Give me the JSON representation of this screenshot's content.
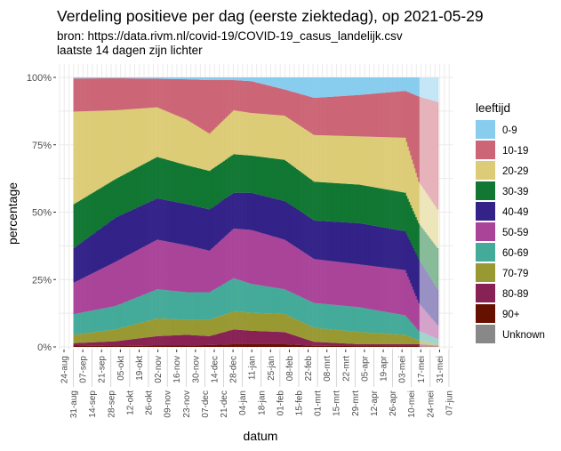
{
  "chart_data": {
    "type": "bar",
    "stacked": "percent",
    "title": "Verdeling positieve per dag (eerste ziektedag), op 2021-05-29",
    "subtitle_lines": [
      "bron: https://data.rivm.nl/covid-19/COVID-19_casus_landelijk.csv",
      "laatste 14 dagen zijn lichter"
    ],
    "xlabel": "datum",
    "ylabel": "percentage",
    "ylim": [
      0,
      100
    ],
    "y_ticks": [
      "0%",
      "25%",
      "50%",
      "75%",
      "100%"
    ],
    "x_ticks": [
      "24-aug",
      "31-aug",
      "07-sep",
      "14-sep",
      "21-sep",
      "28-sep",
      "05-okt",
      "12-okt",
      "19-okt",
      "26-okt",
      "02-nov",
      "09-nov",
      "16-nov",
      "23-nov",
      "30-nov",
      "07-dec",
      "14-dec",
      "21-dec",
      "28-dec",
      "04-jan",
      "11-jan",
      "18-jan",
      "25-jan",
      "01-feb",
      "08-feb",
      "15-feb",
      "22-feb",
      "01-mrt",
      "08-mrt",
      "15-mrt",
      "22-mrt",
      "29-mrt",
      "05-apr",
      "12-apr",
      "19-apr",
      "26-apr",
      "03-mei",
      "10-mei",
      "17-mei",
      "24-mei",
      "31-mei",
      "07-jun"
    ],
    "x_range": [
      "2020-08-20",
      "2021-06-10"
    ],
    "lighter_from": "2021-05-16",
    "grid": true,
    "legend_title": "leeftijd",
    "legend_position": "right",
    "dates": [
      "2020-08-31",
      "2020-10-01",
      "2020-11-01",
      "2020-11-23",
      "2020-12-10",
      "2020-12-28",
      "2021-01-10",
      "2021-02-04",
      "2021-02-26",
      "2021-04-01",
      "2021-05-05",
      "2021-05-15",
      "2021-05-29"
    ],
    "series": [
      {
        "name": "90+",
        "color": "#661100",
        "values": [
          0.5,
          0.3,
          0.5,
          0.5,
          0.7,
          1,
          1,
          1,
          0.4,
          0.3,
          0.3,
          0.3,
          0.2
        ]
      },
      {
        "name": "80-89",
        "color": "#882255",
        "values": [
          0.9,
          1.8,
          3.5,
          4.0,
          3.3,
          5.5,
          5.0,
          4.5,
          1.5,
          0.7,
          0.7,
          0.7,
          0.3
        ]
      },
      {
        "name": "70-79",
        "color": "#999933",
        "values": [
          3.1,
          4.4,
          6.6,
          5.6,
          6.1,
          6.7,
          6.7,
          6.7,
          5.2,
          4.5,
          3.5,
          1.5,
          0.5
        ]
      },
      {
        "name": "60-69",
        "color": "#44AA99",
        "values": [
          7.7,
          8.7,
          10.8,
          10.2,
          10.2,
          12.3,
          10.7,
          9.2,
          9.2,
          9.2,
          7.2,
          3.5,
          2.0
        ]
      },
      {
        "name": "50-59",
        "color": "#AA4499",
        "values": [
          11.7,
          16.4,
          18.4,
          17.4,
          15.4,
          18.4,
          20.0,
          18.4,
          16.3,
          15.9,
          16.8,
          10.3,
          5.1
        ]
      },
      {
        "name": "40-49",
        "color": "#332288",
        "values": [
          12.8,
          16.4,
          15.3,
          15.3,
          15.3,
          13.3,
          13.8,
          14.3,
          14.3,
          15.3,
          14.4,
          16.3,
          13.3
        ]
      },
      {
        "name": "30-39",
        "color": "#117733",
        "values": [
          16.3,
          14.3,
          15.4,
          14.4,
          14.3,
          14.3,
          13.8,
          15.3,
          14.4,
          14.3,
          14.3,
          13.3,
          15.3
        ]
      },
      {
        "name": "20-29",
        "color": "#DDCC77",
        "values": [
          34.3,
          25.5,
          18.4,
          16.9,
          13.8,
          16.3,
          15.8,
          16.4,
          17.3,
          17.9,
          20.4,
          15.4,
          14.3
        ]
      },
      {
        "name": "10-19",
        "color": "#CC6677",
        "values": [
          12.3,
          11.9,
          10.6,
          15.0,
          19.9,
          11.2,
          11.8,
          9.7,
          13.8,
          15.4,
          17.4,
          31.6,
          39.9
        ]
      },
      {
        "name": "0-9",
        "color": "#88CCEE",
        "values": [
          0.4,
          0.3,
          0.5,
          0.7,
          1.0,
          1.0,
          1.4,
          4.5,
          7.6,
          6.5,
          5.0,
          7.1,
          9.1
        ]
      },
      {
        "name": "Unknown",
        "color": "#888888",
        "values": [
          0,
          0,
          0,
          0,
          0,
          0,
          0,
          0,
          0,
          0,
          0,
          0,
          0
        ]
      }
    ],
    "legend_order": [
      "0-9",
      "10-19",
      "20-29",
      "30-39",
      "40-49",
      "50-59",
      "60-69",
      "70-79",
      "80-89",
      "90+",
      "Unknown"
    ]
  }
}
